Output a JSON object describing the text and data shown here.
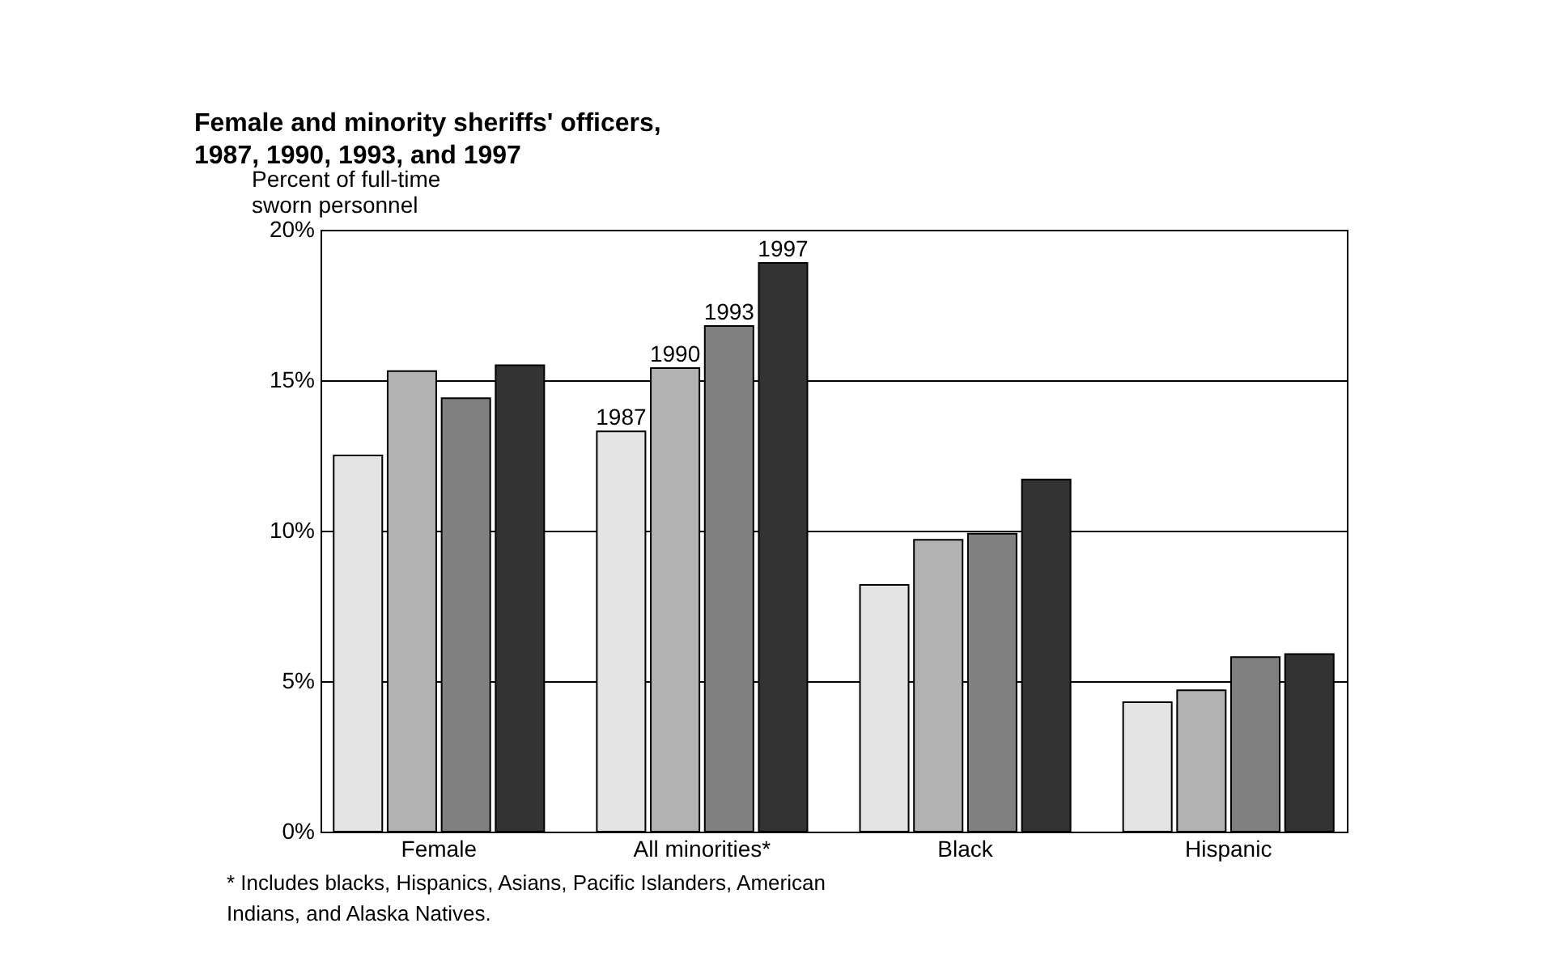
{
  "chart_data": {
    "type": "bar",
    "title": "Female and minority sheriffs' officers,\n1987, 1990, 1993, and 1997",
    "ylabel": "Percent of full-time\n sworn personnel",
    "categories": [
      "Female",
      "All minorities*",
      "Black",
      "Hispanic"
    ],
    "series": [
      {
        "name": "1987",
        "color": "#e4e4e4",
        "values": [
          12.5,
          13.3,
          8.2,
          4.3
        ]
      },
      {
        "name": "1990",
        "color": "#b2b2b2",
        "values": [
          15.3,
          15.4,
          9.7,
          4.7
        ]
      },
      {
        "name": "1993",
        "color": "#808080",
        "values": [
          14.4,
          16.8,
          9.9,
          5.8
        ]
      },
      {
        "name": "1997",
        "color": "#333333",
        "values": [
          15.5,
          18.9,
          11.7,
          5.9
        ]
      }
    ],
    "ylim": [
      0,
      20
    ],
    "yticks": [
      {
        "value": 0,
        "label": "0%"
      },
      {
        "value": 5,
        "label": "5%"
      },
      {
        "value": 10,
        "label": "10%"
      },
      {
        "value": 15,
        "label": "15%"
      },
      {
        "value": 20,
        "label": "20%"
      }
    ],
    "grid": "y",
    "legend": false,
    "annotations": [
      "* Includes blacks, Hispanics, Asians, Pacific Islanders, American Indians, and Alaska Natives."
    ]
  }
}
